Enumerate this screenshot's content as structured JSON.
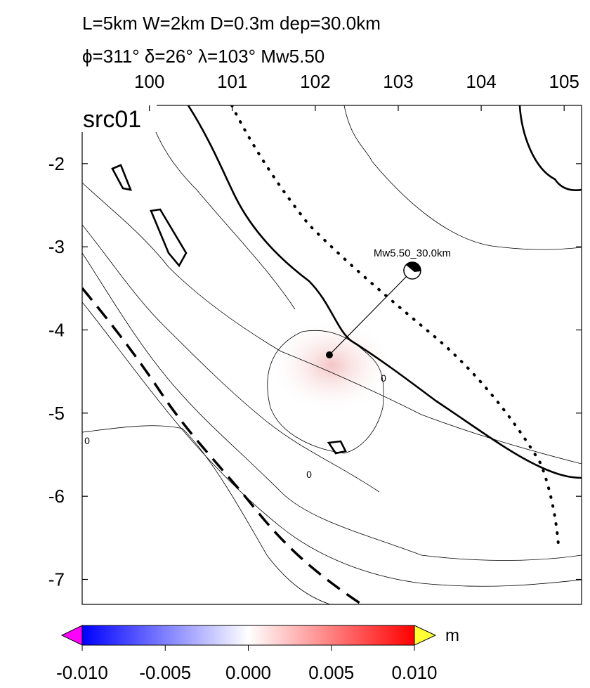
{
  "title_lines": [
    "L=5km W=2km D=0.3m dep=30.0km",
    "ϕ=311° δ=26° λ=103° Mw5.50"
  ],
  "panel_label": "src01",
  "map": {
    "xlim": [
      99.19,
      105.21
    ],
    "ylim": [
      -7.3,
      -1.3
    ],
    "xticks": [
      100,
      101,
      102,
      103,
      104,
      105
    ],
    "yticks": [
      -2,
      -3,
      -4,
      -5,
      -6,
      -7
    ]
  },
  "event": {
    "label": "Mw5.50_30.0km",
    "lon": 102.17,
    "lat": -4.3
  },
  "contour_labels": [
    "0",
    "0",
    "0"
  ],
  "colorbar": {
    "unit": "m",
    "lim": [
      -0.01,
      0.01
    ],
    "ticks": [
      {
        "value": -0.01,
        "label": "-0.010"
      },
      {
        "value": -0.005,
        "label": "-0.005"
      },
      {
        "value": 0,
        "label": "0.000"
      },
      {
        "value": 0.005,
        "label": "0.005"
      },
      {
        "value": 0.01,
        "label": "0.010"
      }
    ]
  }
}
